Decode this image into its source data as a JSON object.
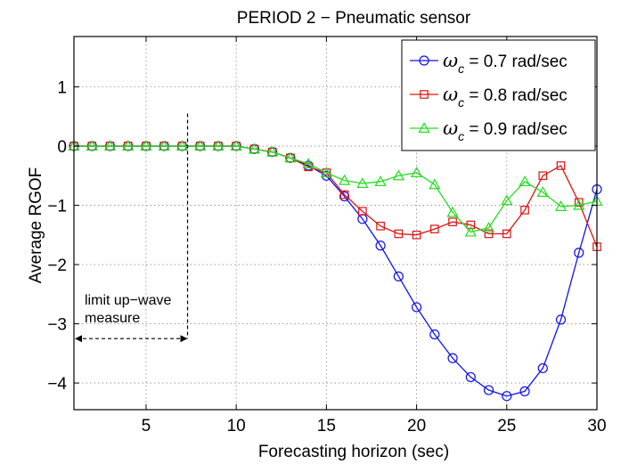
{
  "chart_data": {
    "type": "line",
    "title": "PERIOD 2 − Pneumatic sensor",
    "xlabel": "Forecasting horizon (sec)",
    "ylabel": "Average RGOF",
    "xlim": [
      1,
      30
    ],
    "ylim": [
      -4.45,
      1.85
    ],
    "xticks": [
      5,
      10,
      15,
      20,
      25,
      30
    ],
    "xtick_labels": [
      "5",
      "10",
      "15",
      "20",
      "25",
      "30"
    ],
    "yticks": [
      1,
      0,
      -1,
      -2,
      -3,
      -4
    ],
    "ytick_labels": [
      "1",
      "0",
      "−1",
      "−2",
      "−3",
      "−4"
    ],
    "grid": true,
    "legend_position": "top-right",
    "x": [
      1,
      2,
      3,
      4,
      5,
      6,
      7,
      8,
      9,
      10,
      11,
      12,
      13,
      14,
      15,
      16,
      17,
      18,
      19,
      20,
      21,
      22,
      23,
      24,
      25,
      26,
      27,
      28,
      29,
      30
    ],
    "series": [
      {
        "name": "ωc = 0.7 rad/sec",
        "legend_symbol": "ω",
        "legend_subscript": "c",
        "legend_rest": " = 0.7 rad/sec",
        "color": "#1010ee",
        "marker": "circle",
        "values": [
          0,
          0,
          0,
          0,
          0,
          0,
          0,
          0,
          0,
          0,
          -0.05,
          -0.1,
          -0.2,
          -0.33,
          -0.5,
          -0.85,
          -1.23,
          -1.68,
          -2.2,
          -2.72,
          -3.18,
          -3.58,
          -3.9,
          -4.12,
          -4.22,
          -4.14,
          -3.75,
          -2.93,
          -1.8,
          -0.73
        ]
      },
      {
        "name": "ωc = 0.8 rad/sec",
        "legend_symbol": "ω",
        "legend_subscript": "c",
        "legend_rest": " = 0.8 rad/sec",
        "color": "#dd1111",
        "marker": "square",
        "values": [
          0,
          0,
          0,
          0,
          0,
          0,
          0,
          0,
          0,
          0,
          -0.05,
          -0.1,
          -0.2,
          -0.35,
          -0.45,
          -0.82,
          -1.1,
          -1.35,
          -1.48,
          -1.5,
          -1.4,
          -1.28,
          -1.33,
          -1.48,
          -1.48,
          -1.08,
          -0.5,
          -0.33,
          -0.95,
          -1.7
        ]
      },
      {
        "name": "ωc = 0.9 rad/sec",
        "legend_symbol": "ω",
        "legend_subscript": "c",
        "legend_rest": " = 0.9 rad/sec",
        "color": "#22dd22",
        "marker": "triangle",
        "values": [
          0,
          0,
          0,
          0,
          0,
          0,
          0,
          0,
          0,
          0,
          -0.05,
          -0.1,
          -0.2,
          -0.3,
          -0.45,
          -0.58,
          -0.63,
          -0.6,
          -0.5,
          -0.45,
          -0.65,
          -1.12,
          -1.45,
          -1.38,
          -0.92,
          -0.6,
          -0.78,
          -1.02,
          -1.0,
          -0.93
        ]
      }
    ],
    "annotations": [
      {
        "text_lines": [
          "limit up−wave",
          "measure"
        ],
        "type": "arrow-with-dashed-vertical-line",
        "x": 7.3,
        "arrow_from_x": 1,
        "arrow_y": -3.25,
        "line_top_y": 0.55
      }
    ]
  }
}
